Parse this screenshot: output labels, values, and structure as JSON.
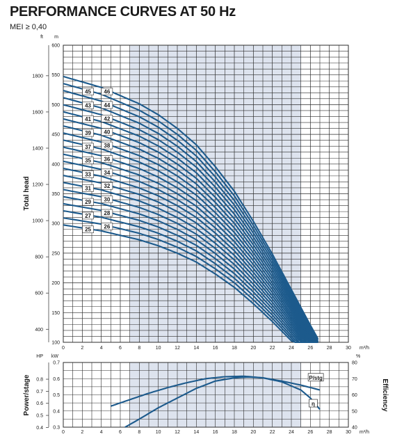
{
  "title": "PERFORMANCE CURVES AT 50 Hz",
  "subtitle": "MEI ≥ 0,40",
  "colors": {
    "curve": "#1c5a8c",
    "grid": "#2b2b2b",
    "band": "#dde3ee",
    "text": "#1a1a1a"
  },
  "chart_data": [
    {
      "type": "line",
      "title": "",
      "ylabel": "Total head",
      "xlabel": "",
      "x_unit": "m³/h",
      "x_ticks": [
        "0",
        "2",
        "4",
        "6",
        "8",
        "10",
        "12",
        "14",
        "16",
        "18",
        "20",
        "22",
        "24",
        "26",
        "28",
        "30"
      ],
      "xlim": [
        0,
        30
      ],
      "y_unit_left": "ft",
      "y_unit_right": "m",
      "ylim_m": [
        100,
        600
      ],
      "y_ticks_m": [
        "100",
        "150",
        "200",
        "250",
        "300",
        "350",
        "400",
        "450",
        "500",
        "550",
        "600"
      ],
      "y_ticks_ft": [
        "400",
        "600",
        "800",
        "1000",
        "1200",
        "1400",
        "1600",
        "1800"
      ],
      "preferred_range_m3h": [
        7,
        25
      ],
      "grid": true,
      "stage_labels": [
        "25",
        "26",
        "27",
        "28",
        "29",
        "30",
        "31",
        "32",
        "33",
        "34",
        "35",
        "36",
        "37",
        "38",
        "39",
        "40",
        "41",
        "42",
        "43",
        "44",
        "45",
        "46"
      ],
      "series_definition": "head per stage (m) at flow x (m³/h); series head = stages × head per stage",
      "head_per_stage_m": {
        "x": [
          0,
          2,
          4,
          6,
          8,
          10,
          12,
          14,
          16,
          18,
          20,
          22,
          24,
          26,
          26.8
        ],
        "y": [
          11.9,
          11.7,
          11.5,
          11.2,
          10.9,
          10.5,
          10.0,
          9.4,
          8.6,
          7.7,
          6.6,
          5.4,
          4.1,
          2.8,
          2.3
        ]
      }
    },
    {
      "type": "line",
      "title": "",
      "ylabel_left": "Power/stage",
      "ylabel_right": "Efficiency",
      "x_unit": "m³/h",
      "x_ticks": [
        "0",
        "2",
        "4",
        "6",
        "8",
        "10",
        "12",
        "14",
        "16",
        "18",
        "20",
        "22",
        "24",
        "26",
        "28",
        "30"
      ],
      "xlim": [
        0,
        30
      ],
      "left_units": [
        "HP",
        "kW"
      ],
      "y_ticks_hp": [
        "0.4",
        "0.5",
        "0.6",
        "0.7",
        "0.8"
      ],
      "y_ticks_kw": [
        "0.3",
        "0.4",
        "0.5",
        "0.6",
        "0.7"
      ],
      "ylim_kw": [
        0.3,
        0.7
      ],
      "right_unit": "%",
      "y_ticks_eff": [
        "40",
        "50",
        "60",
        "70",
        "80"
      ],
      "ylim_eff": [
        40,
        80
      ],
      "grid": true,
      "series": [
        {
          "name": "P/stg",
          "axis": "kw",
          "x": [
            5,
            7,
            9,
            11,
            13,
            15,
            17,
            19,
            21,
            23,
            25,
            27
          ],
          "y": [
            0.43,
            0.47,
            0.51,
            0.545,
            0.575,
            0.6,
            0.612,
            0.615,
            0.605,
            0.585,
            0.56,
            0.53
          ]
        },
        {
          "name": "η",
          "axis": "eff",
          "x": [
            6.5,
            8,
            10,
            12,
            14,
            16,
            18,
            19.5,
            21,
            23,
            25,
            26,
            27
          ],
          "y": [
            40,
            45,
            52,
            58,
            64,
            68.5,
            70.5,
            71,
            70.5,
            68,
            63,
            58,
            51
          ]
        }
      ]
    }
  ]
}
